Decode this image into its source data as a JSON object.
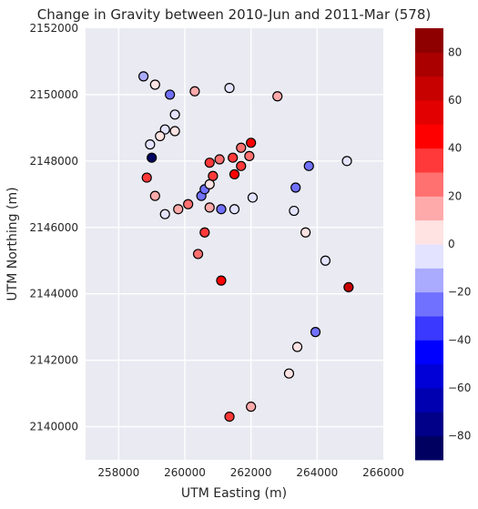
{
  "chart_data": {
    "type": "scatter",
    "title": "Change in Gravity between 2010-Jun and 2011-Mar (578)",
    "xlabel": "UTM Easting (m)",
    "ylabel": "UTM Northing (m)",
    "xlim": [
      257000,
      266000
    ],
    "ylim": [
      2139000,
      2152000
    ],
    "xticks": [
      258000,
      260000,
      262000,
      264000,
      266000
    ],
    "yticks": [
      2140000,
      2142000,
      2144000,
      2146000,
      2148000,
      2150000,
      2152000
    ],
    "xtick_labels": [
      "258000",
      "260000",
      "262000",
      "264000",
      "266000"
    ],
    "ytick_labels": [
      "2140000",
      "2142000",
      "2144000",
      "2146000",
      "2148000",
      "2150000",
      "2152000"
    ],
    "grid": true,
    "background_color": "#eaeaf2",
    "colormap": "seismic",
    "colorbar": {
      "vmin": -90,
      "vmax": 90,
      "ticks": [
        -80,
        -60,
        -40,
        -20,
        0,
        20,
        40,
        60,
        80
      ],
      "tick_labels": [
        "−80",
        "−60",
        "−40",
        "−20",
        "0",
        "20",
        "40",
        "60",
        "80"
      ]
    },
    "points": [
      {
        "x": 258750,
        "y": 2150550,
        "value": -20
      },
      {
        "x": 259100,
        "y": 2150300,
        "value": 0
      },
      {
        "x": 259550,
        "y": 2150000,
        "value": -25
      },
      {
        "x": 260300,
        "y": 2150100,
        "value": 10
      },
      {
        "x": 261350,
        "y": 2150200,
        "value": -5
      },
      {
        "x": 262800,
        "y": 2149950,
        "value": 10
      },
      {
        "x": 259700,
        "y": 2149400,
        "value": -10
      },
      {
        "x": 259400,
        "y": 2148950,
        "value": -10
      },
      {
        "x": 259700,
        "y": 2148900,
        "value": 0
      },
      {
        "x": 259250,
        "y": 2148750,
        "value": 0
      },
      {
        "x": 258950,
        "y": 2148500,
        "value": -10
      },
      {
        "x": 259000,
        "y": 2148100,
        "value": -90
      },
      {
        "x": 258850,
        "y": 2147500,
        "value": 30
      },
      {
        "x": 259100,
        "y": 2146950,
        "value": 10
      },
      {
        "x": 259400,
        "y": 2146400,
        "value": -5
      },
      {
        "x": 259800,
        "y": 2146550,
        "value": 15
      },
      {
        "x": 260100,
        "y": 2146700,
        "value": 20
      },
      {
        "x": 260500,
        "y": 2146950,
        "value": -25
      },
      {
        "x": 260600,
        "y": 2147150,
        "value": -25
      },
      {
        "x": 260750,
        "y": 2147300,
        "value": 0
      },
      {
        "x": 260850,
        "y": 2147550,
        "value": 30
      },
      {
        "x": 260750,
        "y": 2147950,
        "value": 35
      },
      {
        "x": 261050,
        "y": 2148050,
        "value": 25
      },
      {
        "x": 261450,
        "y": 2148100,
        "value": 30
      },
      {
        "x": 261700,
        "y": 2148400,
        "value": 20
      },
      {
        "x": 262000,
        "y": 2148550,
        "value": 40
      },
      {
        "x": 261950,
        "y": 2148150,
        "value": 25
      },
      {
        "x": 261700,
        "y": 2147850,
        "value": 30
      },
      {
        "x": 261500,
        "y": 2147600,
        "value": 45
      },
      {
        "x": 260750,
        "y": 2146600,
        "value": 15
      },
      {
        "x": 261100,
        "y": 2146550,
        "value": -30
      },
      {
        "x": 261500,
        "y": 2146550,
        "value": -10
      },
      {
        "x": 262050,
        "y": 2146900,
        "value": -5
      },
      {
        "x": 260600,
        "y": 2145850,
        "value": 30
      },
      {
        "x": 260400,
        "y": 2145200,
        "value": 20
      },
      {
        "x": 261100,
        "y": 2144400,
        "value": 40
      },
      {
        "x": 263350,
        "y": 2147200,
        "value": -25
      },
      {
        "x": 263750,
        "y": 2147850,
        "value": -25
      },
      {
        "x": 264900,
        "y": 2148000,
        "value": -5
      },
      {
        "x": 263300,
        "y": 2146500,
        "value": -10
      },
      {
        "x": 263650,
        "y": 2145850,
        "value": 0
      },
      {
        "x": 264250,
        "y": 2145000,
        "value": -10
      },
      {
        "x": 264950,
        "y": 2144200,
        "value": 60
      },
      {
        "x": 263950,
        "y": 2142850,
        "value": -30
      },
      {
        "x": 263400,
        "y": 2142400,
        "value": 0
      },
      {
        "x": 263150,
        "y": 2141600,
        "value": 0
      },
      {
        "x": 262000,
        "y": 2140600,
        "value": 10
      },
      {
        "x": 261350,
        "y": 2140300,
        "value": 30
      }
    ]
  }
}
